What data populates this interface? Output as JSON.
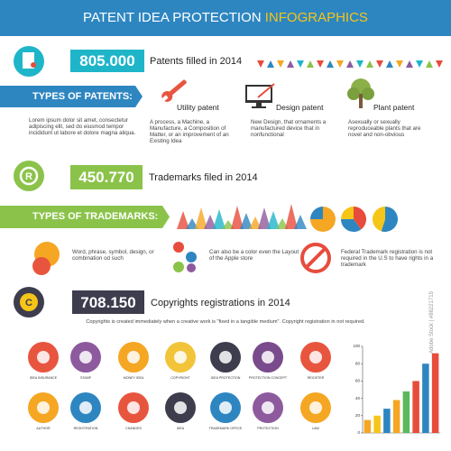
{
  "header": {
    "title": "PATENT IDEA PROTECTION",
    "highlight": "INFOGRAPHICS"
  },
  "patents": {
    "count": "805.000",
    "caption": "Patents filled in 2014",
    "heading": "TYPES OF PATENTS:",
    "intro": "Lorem ipsum dolor sit amet, consectetur adipiscing elit, sed do eiusmod tempor incididunt ut labore et dolore magna aliqua.",
    "types": [
      {
        "name": "Utility patent",
        "desc": "A process, a Machine, a Manufacture, a Composition of Matter, or an improvement of an Existing Idea"
      },
      {
        "name": "Design patent",
        "desc": "New Design, that ornaments a manufactured device that in nonfunctional"
      },
      {
        "name": "Plant patent",
        "desc": "Asexually or sexually reproduceable plants that are novel and non-obvious"
      }
    ]
  },
  "trademarks": {
    "count": "450.770",
    "caption": "Trademarks filed in 2014",
    "heading": "TYPES OF TRADEMARKS:",
    "pies": [
      {
        "values": [
          75,
          25
        ],
        "colors": [
          "#f5a623",
          "#2e86c1"
        ]
      },
      {
        "values": [
          40,
          35,
          25
        ],
        "colors": [
          "#e74c3c",
          "#2e86c1",
          "#f5c518"
        ]
      },
      {
        "values": [
          55,
          45
        ],
        "colors": [
          "#2e86c1",
          "#f5c518"
        ]
      }
    ],
    "features": [
      "Word, phrase, symbol, design, or combination od such",
      "Can also be a color even the Layout of the Apple store",
      "Federal Trademark registration is not required in the U.S to have rights in a trademark"
    ]
  },
  "copyrights": {
    "count": "708.150",
    "caption": "Copyrights registrations in 2014",
    "note": "Copyrights is created immediately when a creative work is \"fixed in a tangible medium\". Copyright registration in not required."
  },
  "icons": [
    "IDEA INSURANCE",
    "STAMP",
    "MONEY IDEA",
    "COPYRIGHT",
    "IDEA PROTECTION",
    "PROTECTION CONCEPT",
    "REGISTER",
    "AUTHOR",
    "REGISTRATION",
    "CHANGES",
    "IDEA",
    "TRADEMARK OFFICE",
    "PROTECTION",
    "LAW"
  ],
  "chart_data": {
    "type": "bar",
    "values": [
      15,
      20,
      28,
      38,
      48,
      60,
      80,
      92
    ],
    "colors": [
      "#f5a623",
      "#f5c518",
      "#2e86c1",
      "#f5a623",
      "#5cb85c",
      "#e74c3c",
      "#2e86c1",
      "#e74c3c"
    ],
    "ylim": [
      0,
      100
    ],
    "yticks": [
      0,
      20,
      40,
      60,
      80,
      100
    ]
  },
  "watermark": "Adobe Stock | #86221715"
}
